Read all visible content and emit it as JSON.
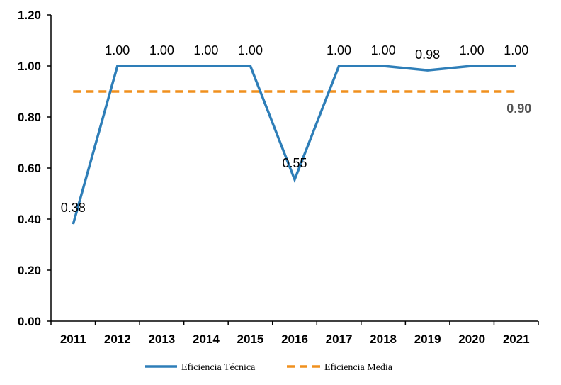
{
  "chart_data": {
    "type": "line",
    "categories": [
      "2011",
      "2012",
      "2013",
      "2014",
      "2015",
      "2016",
      "2017",
      "2018",
      "2019",
      "2020",
      "2021"
    ],
    "series": [
      {
        "name": "Eficiencia Técnica",
        "color": "#2E7EB8",
        "style": "solid",
        "values": [
          0.38,
          1.0,
          1.0,
          1.0,
          1.0,
          0.555,
          1.0,
          1.0,
          0.983,
          1.0,
          1.0
        ],
        "labels": [
          "0.38",
          "1.00",
          "1.00",
          "1.00",
          "1.00",
          "0.55",
          "1.00",
          "1.00",
          "0.98",
          "1.00",
          "1.00"
        ]
      },
      {
        "name": "Eficiencia Media",
        "color": "#F0901E",
        "style": "dashed",
        "value": 0.9,
        "label": "0.90"
      }
    ],
    "y_ticks": [
      "0.00",
      "0.20",
      "0.40",
      "0.60",
      "0.80",
      "1.00",
      "1.20"
    ],
    "ylim": [
      0,
      1.2
    ],
    "grid": false,
    "legend": "bottom"
  }
}
